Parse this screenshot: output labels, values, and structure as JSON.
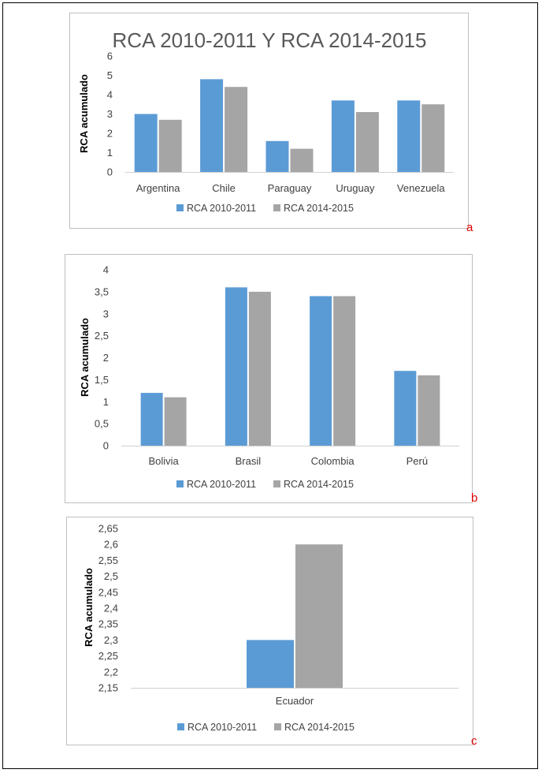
{
  "colors": {
    "series_1": "#5b9bd5",
    "series_2": "#a5a5a5",
    "panel_letter": "#e00000",
    "axis_text": "#404040",
    "title_text": "#595959"
  },
  "chart_data": [
    {
      "type": "bar",
      "title": "RCA 2010-2011 Y RCA 2014-2015",
      "xlabel": "",
      "ylabel": "RCA acumulado",
      "categories": [
        "Argentina",
        "Chile",
        "Paraguay",
        "Uruguay",
        "Venezuela"
      ],
      "ylim": [
        0,
        6
      ],
      "yticks": [
        "0",
        "1",
        "2",
        "3",
        "4",
        "5",
        "6"
      ],
      "grid": false,
      "legend": "bottom",
      "panel_label": "a",
      "series": [
        {
          "name": "RCA 2010-2011",
          "values": [
            3.0,
            4.8,
            1.6,
            3.7,
            3.7
          ]
        },
        {
          "name": "RCA 2014-2015",
          "values": [
            2.7,
            4.4,
            1.2,
            3.1,
            3.5
          ]
        }
      ]
    },
    {
      "type": "bar",
      "title": "",
      "xlabel": "",
      "ylabel": "RCA acumulado",
      "categories": [
        "Bolivia",
        "Brasil",
        "Colombia",
        "Perú"
      ],
      "ylim": [
        0,
        4
      ],
      "yticks": [
        "0",
        "0,5",
        "1",
        "1,5",
        "2",
        "2,5",
        "3",
        "3,5",
        "4"
      ],
      "grid": false,
      "legend": "bottom",
      "panel_label": "b",
      "series": [
        {
          "name": "RCA 2010-2011",
          "values": [
            1.2,
            3.6,
            3.4,
            1.7
          ]
        },
        {
          "name": "RCA 2014-2015",
          "values": [
            1.1,
            3.5,
            3.4,
            1.6
          ]
        }
      ]
    },
    {
      "type": "bar",
      "title": "",
      "xlabel": "",
      "ylabel": "RCA acumulado",
      "categories": [
        "Ecuador"
      ],
      "ylim": [
        2.15,
        2.65
      ],
      "yticks": [
        "2,15",
        "2,2",
        "2,25",
        "2,3",
        "2,35",
        "2,4",
        "2,45",
        "2,5",
        "2,55",
        "2,6",
        "2,65"
      ],
      "grid": false,
      "legend": "bottom",
      "panel_label": "c",
      "series": [
        {
          "name": "RCA 2010-2011",
          "values": [
            2.3
          ]
        },
        {
          "name": "RCA 2014-2015",
          "values": [
            2.6
          ]
        }
      ]
    }
  ]
}
